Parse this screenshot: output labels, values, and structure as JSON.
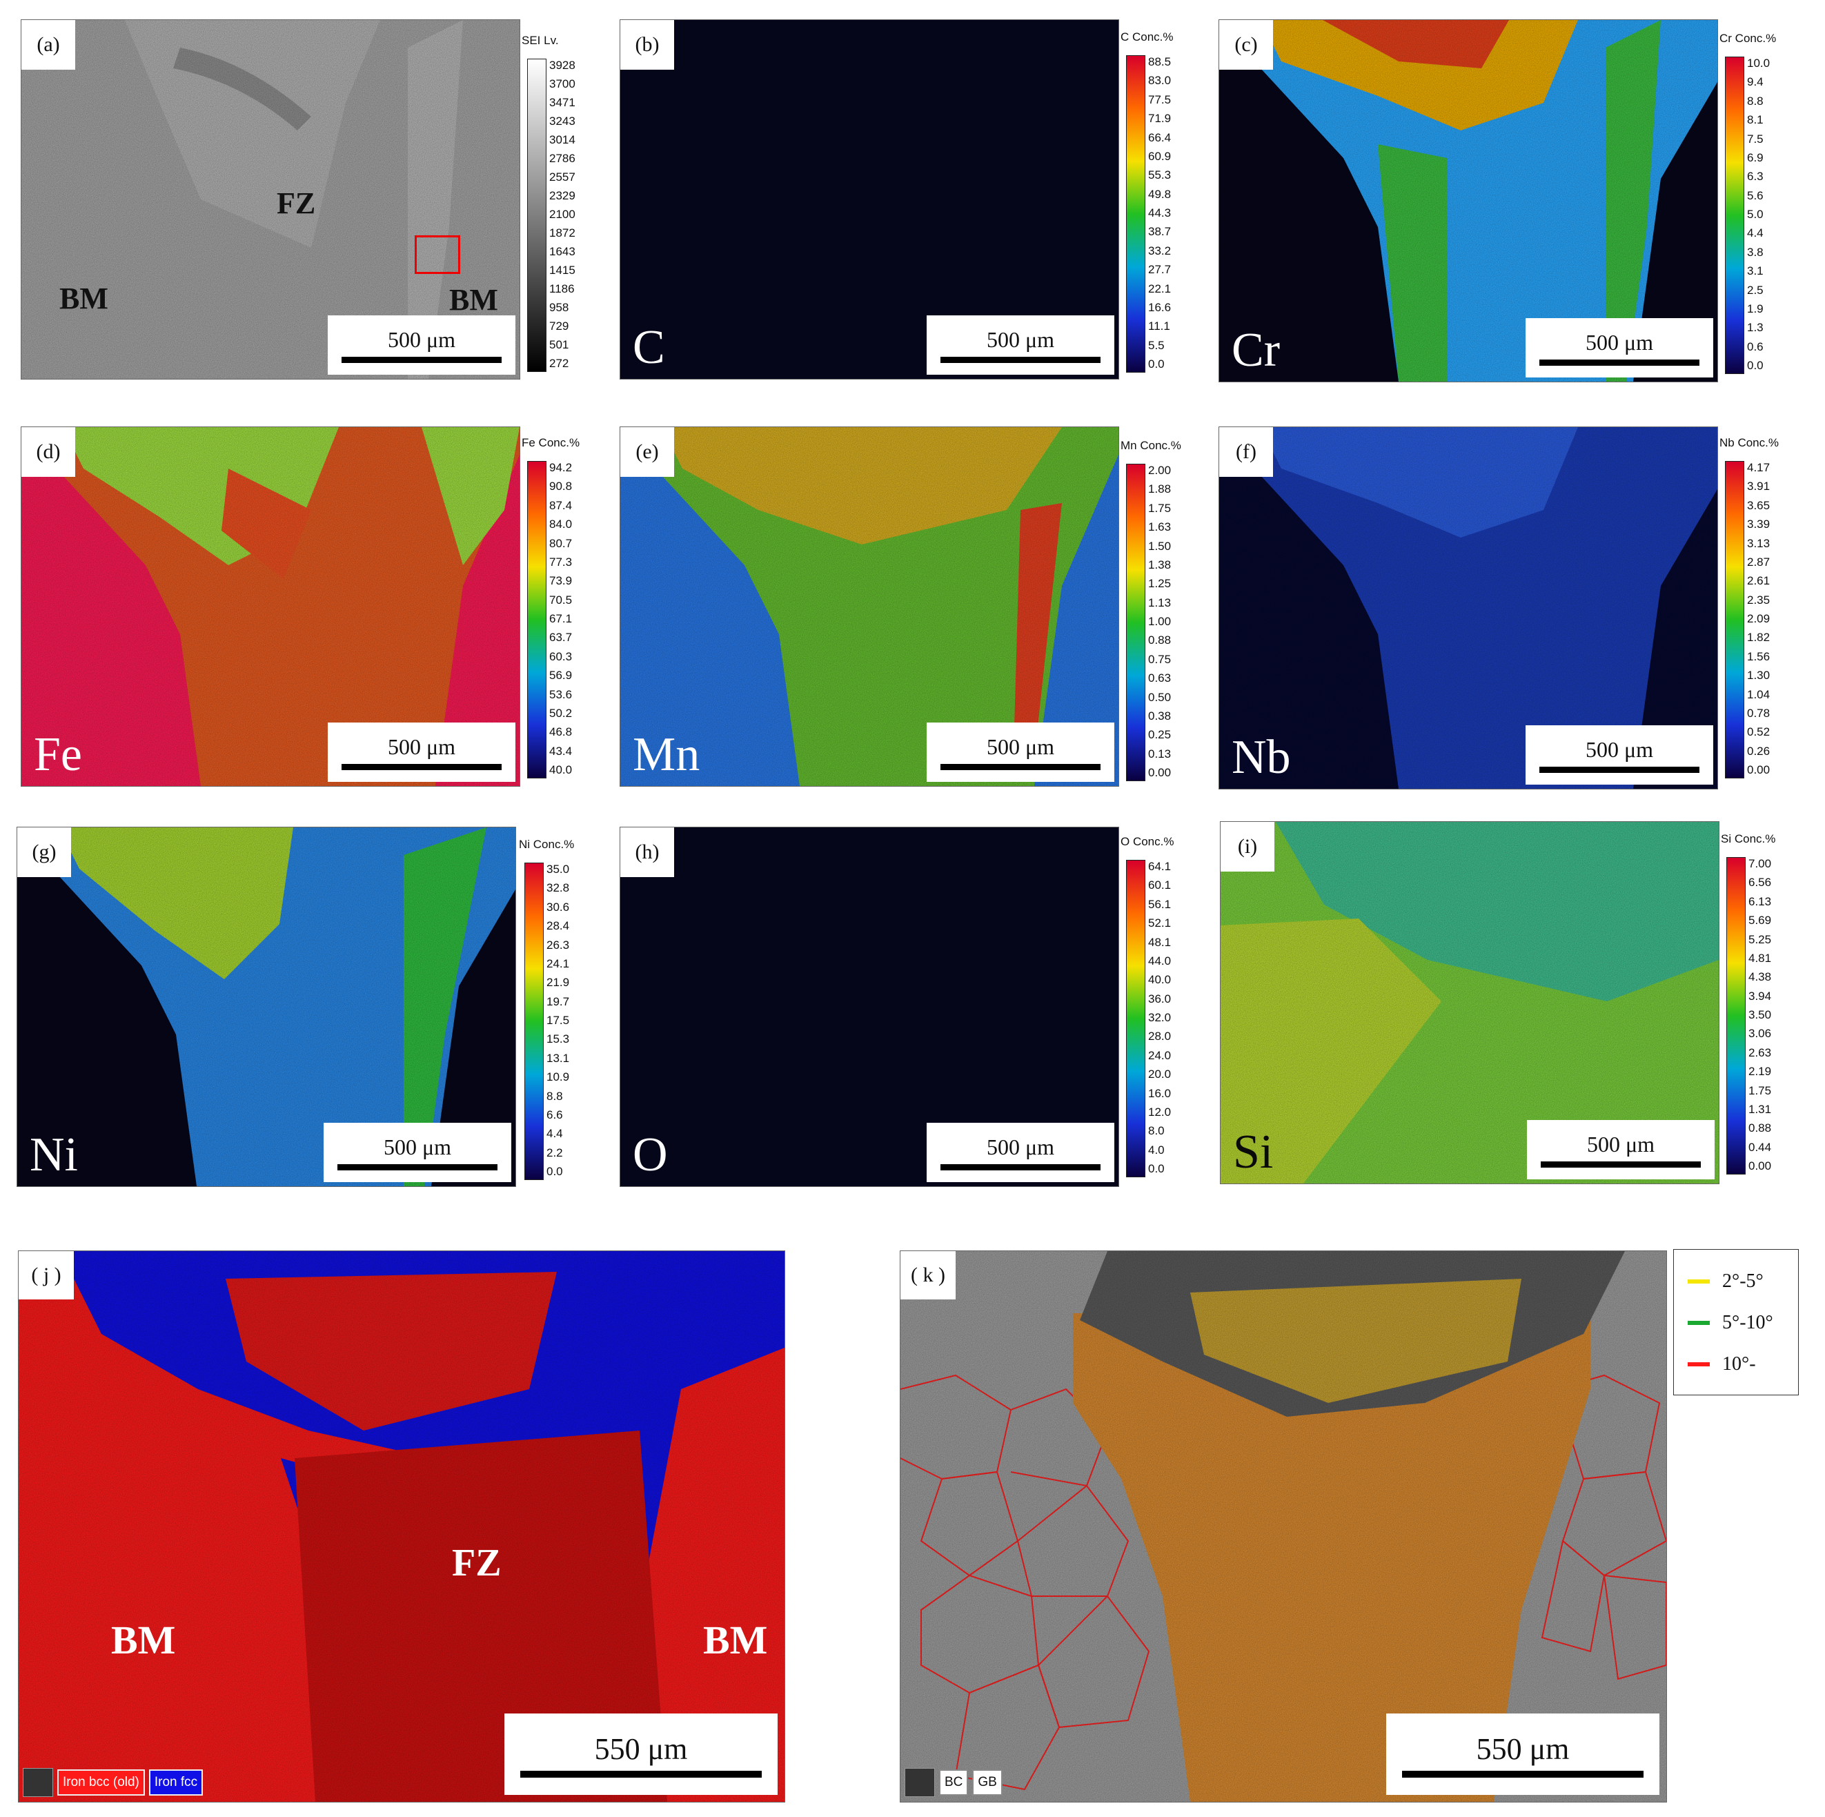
{
  "panels": {
    "a": {
      "label": "(a)",
      "zones": {
        "fz": "FZ",
        "bm_left": "BM",
        "bm_right": "BM"
      },
      "scale": "500 μm",
      "colorbar": {
        "title": "SEI  Lv.",
        "ticks": [
          "3928",
          "3700",
          "3471",
          "3243",
          "3014",
          "2786",
          "2557",
          "2329",
          "2100",
          "1872",
          "1643",
          "1415",
          "1186",
          "958",
          "729",
          "501",
          "272"
        ]
      }
    },
    "b": {
      "label": "(b)",
      "element": "C",
      "scale": "500 μm",
      "colorbar": {
        "title": "C  Conc.%",
        "ticks": [
          "88.5",
          "83.0",
          "77.5",
          "71.9",
          "66.4",
          "60.9",
          "55.3",
          "49.8",
          "44.3",
          "38.7",
          "33.2",
          "27.7",
          "22.1",
          "16.6",
          "11.1",
          "5.5",
          "0.0"
        ]
      }
    },
    "c": {
      "label": "(c)",
      "element": "Cr",
      "scale": "500 μm",
      "colorbar": {
        "title": "Cr  Conc.%",
        "ticks": [
          "10.0",
          "9.4",
          "8.8",
          "8.1",
          "7.5",
          "6.9",
          "6.3",
          "5.6",
          "5.0",
          "4.4",
          "3.8",
          "3.1",
          "2.5",
          "1.9",
          "1.3",
          "0.6",
          "0.0"
        ]
      }
    },
    "d": {
      "label": "(d)",
      "element": "Fe",
      "scale": "500 μm",
      "colorbar": {
        "title": "Fe  Conc.%",
        "ticks": [
          "94.2",
          "90.8",
          "87.4",
          "84.0",
          "80.7",
          "77.3",
          "73.9",
          "70.5",
          "67.1",
          "63.7",
          "60.3",
          "56.9",
          "53.6",
          "50.2",
          "46.8",
          "43.4",
          "40.0"
        ]
      }
    },
    "e": {
      "label": "(e)",
      "element": "Mn",
      "scale": "500 μm",
      "colorbar": {
        "title": "Mn  Conc.%",
        "ticks": [
          "2.00",
          "1.88",
          "1.75",
          "1.63",
          "1.50",
          "1.38",
          "1.25",
          "1.13",
          "1.00",
          "0.88",
          "0.75",
          "0.63",
          "0.50",
          "0.38",
          "0.25",
          "0.13",
          "0.00"
        ]
      }
    },
    "f": {
      "label": "(f)",
      "element": "Nb",
      "scale": "500 μm",
      "colorbar": {
        "title": "Nb  Conc.%",
        "ticks": [
          "4.17",
          "3.91",
          "3.65",
          "3.39",
          "3.13",
          "2.87",
          "2.61",
          "2.35",
          "2.09",
          "1.82",
          "1.56",
          "1.30",
          "1.04",
          "0.78",
          "0.52",
          "0.26",
          "0.00"
        ]
      }
    },
    "g": {
      "label": "(g)",
      "element": "Ni",
      "scale": "500 μm",
      "colorbar": {
        "title": "Ni  Conc.%",
        "ticks": [
          "35.0",
          "32.8",
          "30.6",
          "28.4",
          "26.3",
          "24.1",
          "21.9",
          "19.7",
          "17.5",
          "15.3",
          "13.1",
          "10.9",
          "8.8",
          "6.6",
          "4.4",
          "2.2",
          "0.0"
        ]
      }
    },
    "h": {
      "label": "(h)",
      "element": "O",
      "scale": "500 μm",
      "colorbar": {
        "title": "O  Conc.%",
        "ticks": [
          "64.1",
          "60.1",
          "56.1",
          "52.1",
          "48.1",
          "44.0",
          "40.0",
          "36.0",
          "32.0",
          "28.0",
          "24.0",
          "20.0",
          "16.0",
          "12.0",
          "8.0",
          "4.0",
          "0.0"
        ]
      }
    },
    "i": {
      "label": "(i)",
      "element": "Si",
      "scale": "500 μm",
      "colorbar": {
        "title": "Si  Conc.%",
        "ticks": [
          "7.00",
          "6.56",
          "6.13",
          "5.69",
          "5.25",
          "4.81",
          "4.38",
          "3.94",
          "3.50",
          "3.06",
          "2.63",
          "2.19",
          "1.75",
          "1.31",
          "0.88",
          "0.44",
          "0.00"
        ]
      }
    },
    "j": {
      "label": "( j )",
      "zones": {
        "fz": "FZ",
        "bm_left": "BM",
        "bm_right": "BM"
      },
      "scale": "550 μm",
      "phases": [
        "Iron bcc (old)",
        "Iron fcc"
      ]
    },
    "k": {
      "label": "( k )",
      "scale": "550 μm",
      "tags": [
        "BC",
        "GB"
      ],
      "legend": [
        {
          "label": "2°-5°",
          "color": "#f5e600"
        },
        {
          "label": "5°-10°",
          "color": "#1aa830"
        },
        {
          "label": "10°-",
          "color": "#ff1a1a"
        }
      ]
    }
  },
  "colors": {
    "hot_top": "#d8002a",
    "hot_bottom": "#0a0040",
    "bcc": "#ff1a1a",
    "fcc": "#1010e6"
  }
}
